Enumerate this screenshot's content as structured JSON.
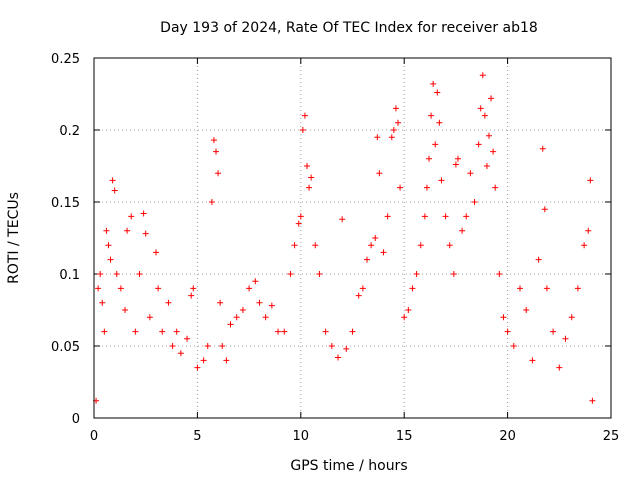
{
  "chart_data": {
    "type": "scatter",
    "title": "Day 193 of 2024, Rate Of TEC Index for receiver ab18",
    "xlabel": "GPS time / hours",
    "ylabel": "ROTI / TECUs",
    "xlim": [
      0,
      25
    ],
    "ylim": [
      0,
      0.25
    ],
    "xticks": [
      0,
      5,
      10,
      15,
      20,
      25
    ],
    "yticks": [
      0,
      0.05,
      0.1,
      0.15,
      0.2,
      0.25
    ],
    "xtick_labels": [
      "0",
      "5",
      "10",
      "15",
      "20",
      "25"
    ],
    "ytick_labels": [
      "0",
      "0.05",
      "0.1",
      "0.15",
      "0.2",
      "0.25"
    ],
    "grid": true,
    "legend": "none",
    "marker": "plus",
    "color": "#ff0000",
    "series": [
      {
        "points": [
          [
            0.1,
            0.012
          ],
          [
            0.2,
            0.09
          ],
          [
            0.3,
            0.1
          ],
          [
            0.4,
            0.08
          ],
          [
            0.5,
            0.06
          ],
          [
            0.6,
            0.13
          ],
          [
            0.7,
            0.12
          ],
          [
            0.8,
            0.11
          ],
          [
            0.9,
            0.165
          ],
          [
            1.0,
            0.158
          ],
          [
            1.1,
            0.1
          ],
          [
            1.3,
            0.09
          ],
          [
            1.5,
            0.075
          ],
          [
            1.6,
            0.13
          ],
          [
            1.8,
            0.14
          ],
          [
            2.0,
            0.06
          ],
          [
            2.2,
            0.1
          ],
          [
            2.4,
            0.142
          ],
          [
            2.5,
            0.128
          ],
          [
            2.7,
            0.07
          ],
          [
            3.0,
            0.115
          ],
          [
            3.1,
            0.09
          ],
          [
            3.3,
            0.06
          ],
          [
            3.6,
            0.08
          ],
          [
            3.8,
            0.05
          ],
          [
            4.0,
            0.06
          ],
          [
            4.2,
            0.045
          ],
          [
            4.5,
            0.055
          ],
          [
            4.7,
            0.085
          ],
          [
            4.8,
            0.09
          ],
          [
            5.0,
            0.035
          ],
          [
            5.3,
            0.04
          ],
          [
            5.5,
            0.05
          ],
          [
            5.7,
            0.15
          ],
          [
            5.8,
            0.193
          ],
          [
            5.9,
            0.185
          ],
          [
            6.0,
            0.17
          ],
          [
            6.1,
            0.08
          ],
          [
            6.2,
            0.05
          ],
          [
            6.4,
            0.04
          ],
          [
            6.6,
            0.065
          ],
          [
            6.9,
            0.07
          ],
          [
            7.2,
            0.075
          ],
          [
            7.5,
            0.09
          ],
          [
            7.8,
            0.095
          ],
          [
            8.0,
            0.08
          ],
          [
            8.3,
            0.07
          ],
          [
            8.6,
            0.078
          ],
          [
            8.9,
            0.06
          ],
          [
            9.2,
            0.06
          ],
          [
            9.5,
            0.1
          ],
          [
            9.7,
            0.12
          ],
          [
            9.9,
            0.135
          ],
          [
            10.0,
            0.14
          ],
          [
            10.1,
            0.2
          ],
          [
            10.2,
            0.21
          ],
          [
            10.3,
            0.175
          ],
          [
            10.4,
            0.16
          ],
          [
            10.5,
            0.167
          ],
          [
            10.7,
            0.12
          ],
          [
            10.9,
            0.1
          ],
          [
            11.2,
            0.06
          ],
          [
            11.5,
            0.05
          ],
          [
            11.8,
            0.042
          ],
          [
            12.0,
            0.138
          ],
          [
            12.2,
            0.048
          ],
          [
            12.5,
            0.06
          ],
          [
            12.8,
            0.085
          ],
          [
            13.0,
            0.09
          ],
          [
            13.2,
            0.11
          ],
          [
            13.4,
            0.12
          ],
          [
            13.6,
            0.125
          ],
          [
            13.7,
            0.195
          ],
          [
            13.8,
            0.17
          ],
          [
            14.0,
            0.115
          ],
          [
            14.2,
            0.14
          ],
          [
            14.4,
            0.195
          ],
          [
            14.5,
            0.2
          ],
          [
            14.6,
            0.215
          ],
          [
            14.7,
            0.205
          ],
          [
            14.8,
            0.16
          ],
          [
            15.0,
            0.07
          ],
          [
            15.2,
            0.075
          ],
          [
            15.4,
            0.09
          ],
          [
            15.6,
            0.1
          ],
          [
            15.8,
            0.12
          ],
          [
            16.0,
            0.14
          ],
          [
            16.1,
            0.16
          ],
          [
            16.2,
            0.18
          ],
          [
            16.3,
            0.21
          ],
          [
            16.4,
            0.232
          ],
          [
            16.5,
            0.19
          ],
          [
            16.6,
            0.226
          ],
          [
            16.7,
            0.205
          ],
          [
            16.8,
            0.165
          ],
          [
            17.0,
            0.14
          ],
          [
            17.2,
            0.12
          ],
          [
            17.4,
            0.1
          ],
          [
            17.5,
            0.176
          ],
          [
            17.6,
            0.18
          ],
          [
            17.8,
            0.13
          ],
          [
            18.0,
            0.14
          ],
          [
            18.2,
            0.17
          ],
          [
            18.4,
            0.15
          ],
          [
            18.6,
            0.19
          ],
          [
            18.7,
            0.215
          ],
          [
            18.8,
            0.238
          ],
          [
            18.9,
            0.21
          ],
          [
            19.0,
            0.175
          ],
          [
            19.1,
            0.196
          ],
          [
            19.2,
            0.222
          ],
          [
            19.3,
            0.185
          ],
          [
            19.4,
            0.16
          ],
          [
            19.6,
            0.1
          ],
          [
            19.8,
            0.07
          ],
          [
            20.0,
            0.06
          ],
          [
            20.3,
            0.05
          ],
          [
            20.6,
            0.09
          ],
          [
            20.9,
            0.075
          ],
          [
            21.2,
            0.04
          ],
          [
            21.5,
            0.11
          ],
          [
            21.7,
            0.187
          ],
          [
            21.8,
            0.145
          ],
          [
            21.9,
            0.09
          ],
          [
            22.2,
            0.06
          ],
          [
            22.5,
            0.035
          ],
          [
            22.8,
            0.055
          ],
          [
            23.1,
            0.07
          ],
          [
            23.4,
            0.09
          ],
          [
            23.7,
            0.12
          ],
          [
            23.9,
            0.13
          ],
          [
            24.0,
            0.165
          ],
          [
            24.1,
            0.012
          ]
        ]
      }
    ]
  }
}
